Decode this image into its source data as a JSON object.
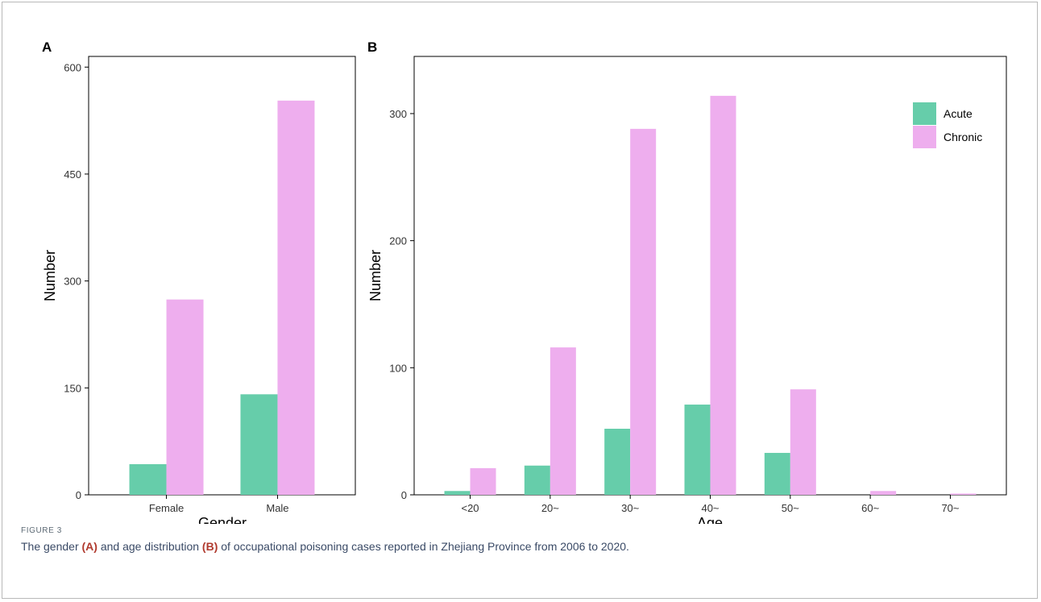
{
  "figure": {
    "label": "FIGURE 3",
    "caption": {
      "part1": "The gender ",
      "ref_a": "(A)",
      "part2": " and age distribution ",
      "ref_b": "(B)",
      "part3": " of occupational poisoning cases reported in Zhejiang Province from 2006 to 2020."
    }
  },
  "colors": {
    "acute": "#66cdaa",
    "chronic": "#eeaeee"
  },
  "legend": {
    "items": [
      "Acute",
      "Chronic"
    ],
    "placement": "top-right inside panel B"
  },
  "chart_data": [
    {
      "type": "bar",
      "panel": "A",
      "xlabel": "Gender",
      "ylabel": "Number",
      "categories": [
        "Female",
        "Male"
      ],
      "series": [
        {
          "name": "Acute",
          "values": [
            43,
            141
          ]
        },
        {
          "name": "Chronic",
          "values": [
            274,
            553
          ]
        }
      ],
      "ylim": [
        0,
        615
      ],
      "yticks": [
        0,
        150,
        300,
        450,
        600
      ],
      "grid": false
    },
    {
      "type": "bar",
      "panel": "B",
      "xlabel": "Age",
      "ylabel": "Number",
      "categories": [
        "<20",
        "20~",
        "30~",
        "40~",
        "50~",
        "60~",
        "70~"
      ],
      "series": [
        {
          "name": "Acute",
          "values": [
            3,
            23,
            52,
            71,
            33,
            0,
            0
          ]
        },
        {
          "name": "Chronic",
          "values": [
            21,
            116,
            288,
            314,
            83,
            3,
            1
          ]
        }
      ],
      "ylim": [
        0,
        345
      ],
      "yticks": [
        0,
        100,
        200,
        300
      ],
      "grid": false
    }
  ]
}
